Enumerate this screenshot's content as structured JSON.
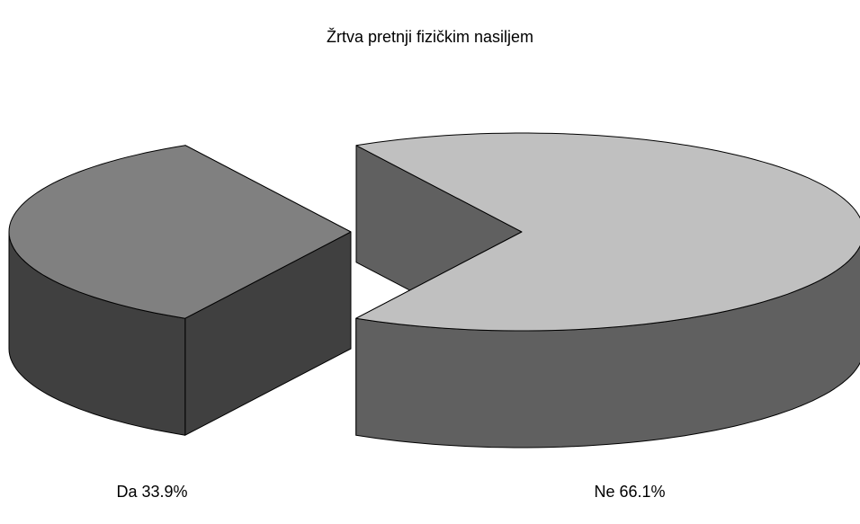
{
  "chart_data": {
    "type": "pie3d",
    "title": "Žrtva pretnji fizičkim nasiljem",
    "categories": [
      "Da",
      "Ne"
    ],
    "values": [
      33.9,
      66.1
    ],
    "value_labels": [
      "33.9%",
      "66.1%"
    ],
    "colors": [
      "#808080",
      "#c0c0c0"
    ],
    "side_colors": [
      "#404040",
      "#606060"
    ]
  }
}
